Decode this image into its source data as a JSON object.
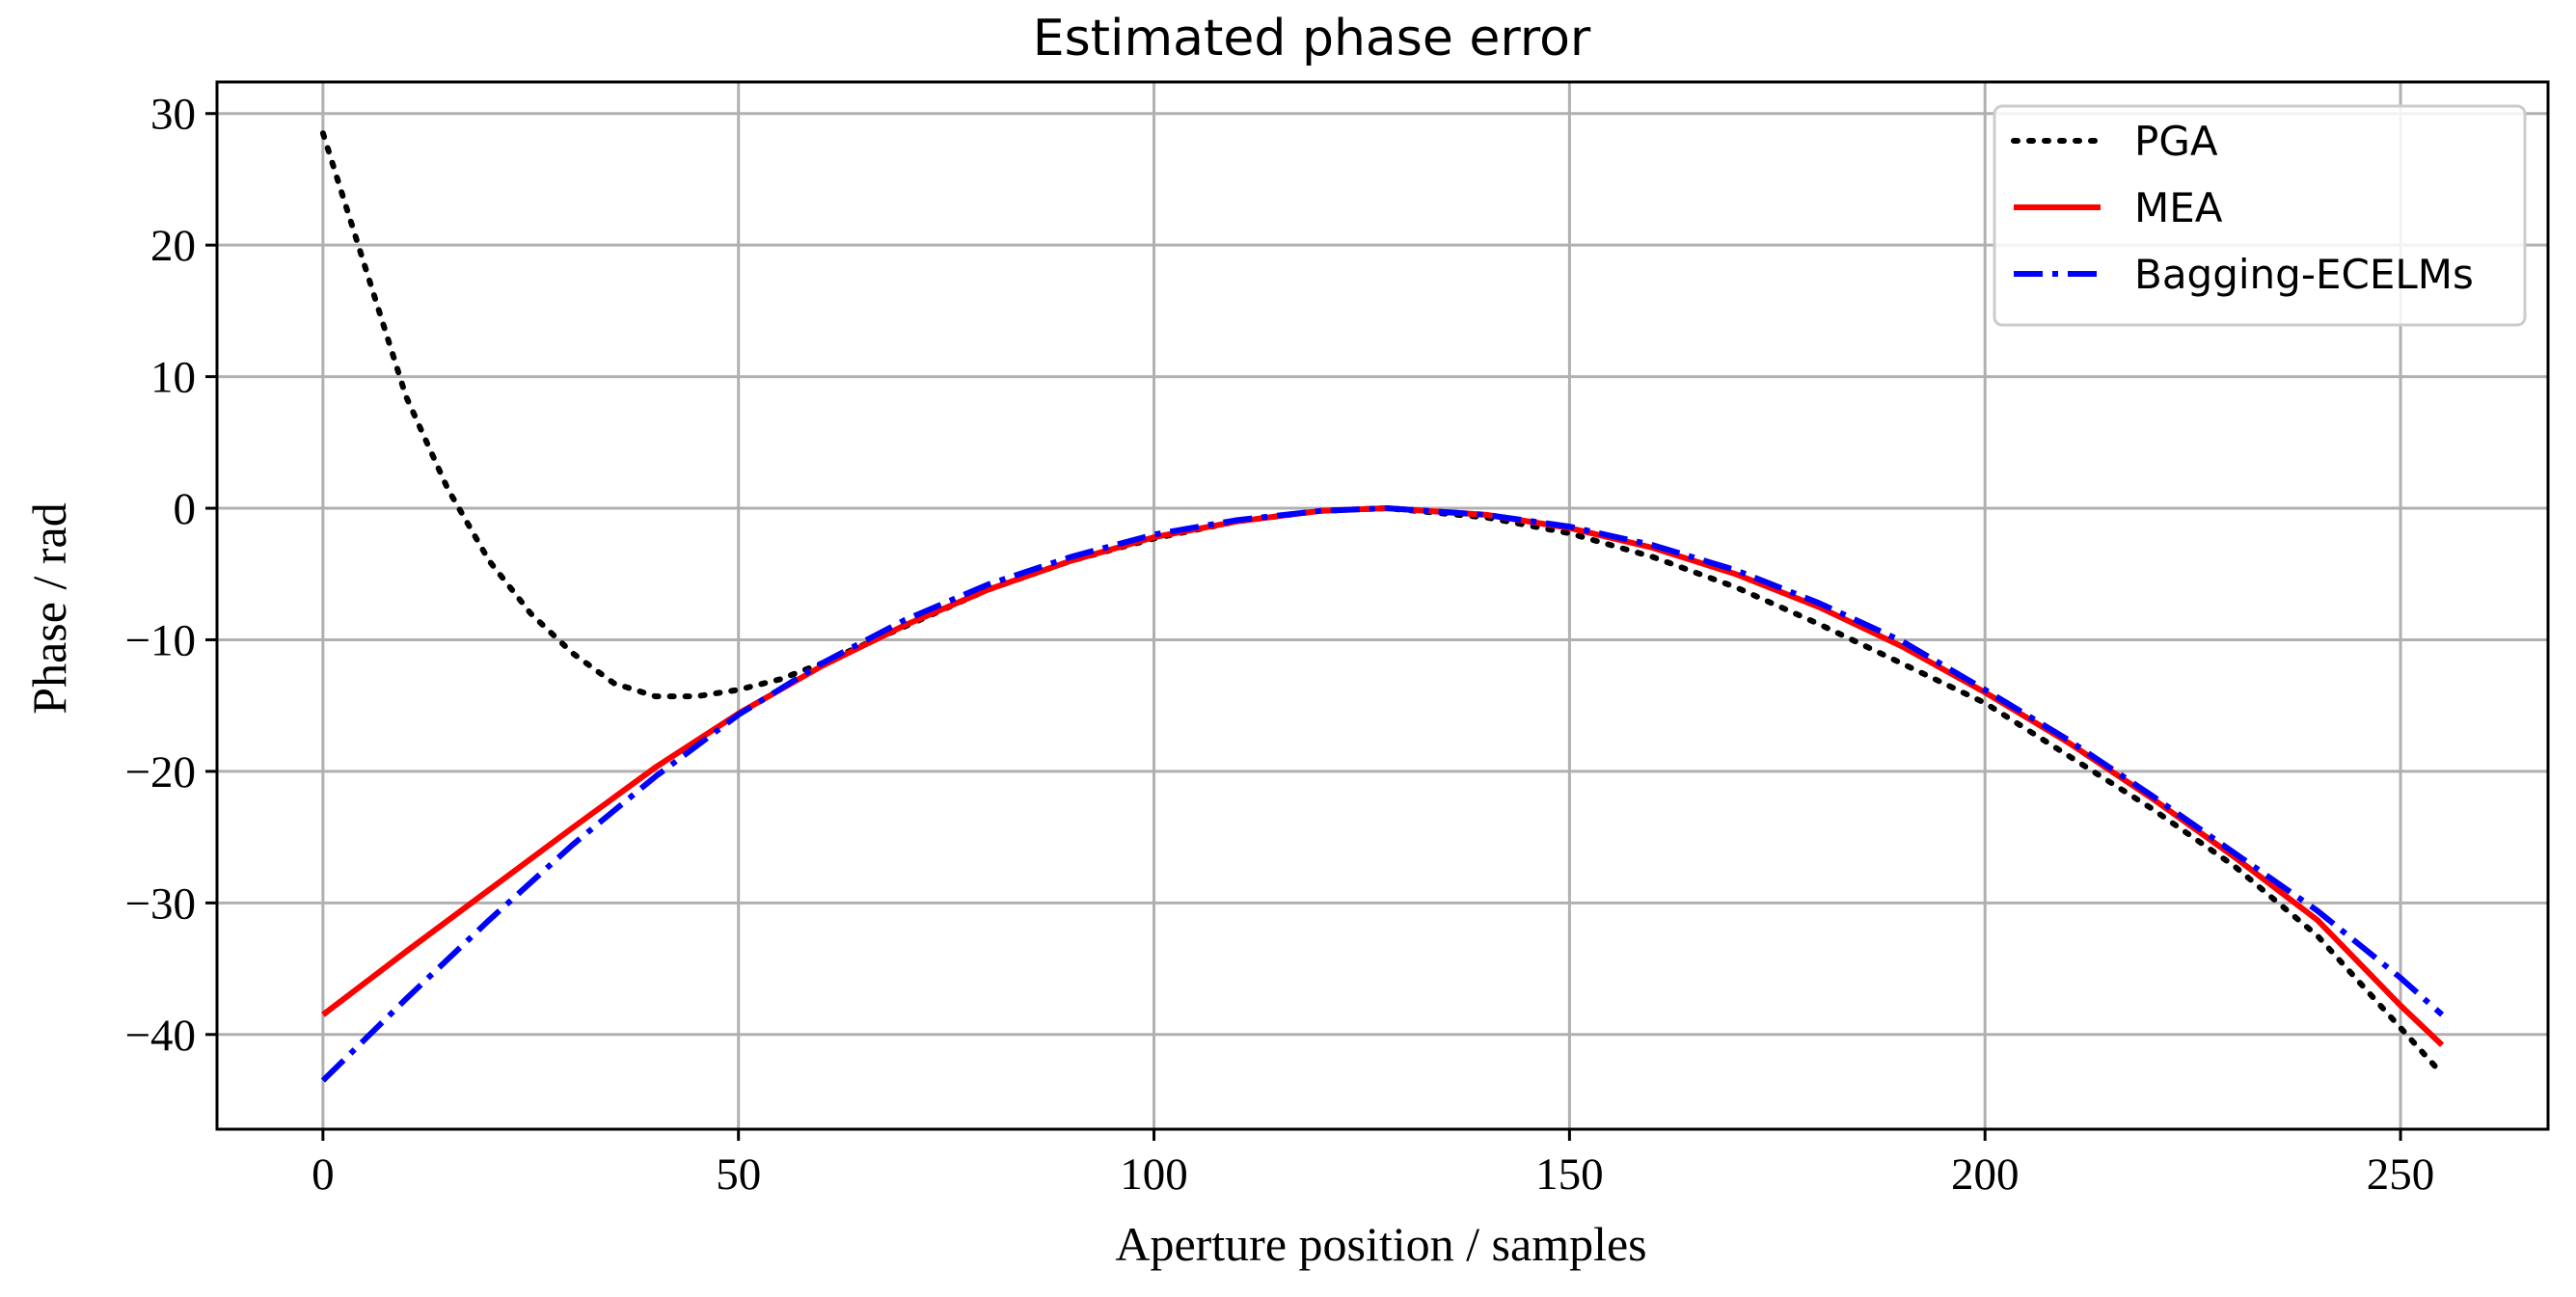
{
  "chart_data": {
    "type": "line",
    "title": "Estimated phase error",
    "xlabel": "Aperture position / samples",
    "ylabel": "Phase / rad",
    "xlim": [
      -12.75,
      267.75
    ],
    "ylim": [
      -47.2,
      32.4
    ],
    "xticks": [
      0,
      50,
      100,
      150,
      200,
      250
    ],
    "xtick_labels": [
      "0",
      "50",
      "100",
      "150",
      "200",
      "250"
    ],
    "yticks": [
      30,
      20,
      10,
      0,
      -10,
      -20,
      -30,
      -40
    ],
    "ytick_labels": [
      "30",
      "20",
      "10",
      "0",
      "−10",
      "−20",
      "−30",
      "−40"
    ],
    "grid": true,
    "legend_position": "top-right",
    "series": [
      {
        "name": "PGA",
        "color": "#000000",
        "style": "dotted",
        "x": [
          0,
          5,
          10,
          15,
          20,
          25,
          30,
          35,
          40,
          45,
          50,
          55,
          60,
          65,
          70,
          80,
          90,
          100,
          110,
          120,
          128,
          140,
          150,
          160,
          170,
          180,
          190,
          200,
          210,
          220,
          230,
          240,
          250,
          255
        ],
        "y": [
          28.5,
          18.5,
          8.5,
          1.5,
          -4.0,
          -8.0,
          -11.0,
          -13.3,
          -14.3,
          -14.3,
          -13.8,
          -13.0,
          -11.8,
          -10.4,
          -9.0,
          -6.2,
          -4.0,
          -2.3,
          -1.0,
          -0.2,
          0.0,
          -0.7,
          -1.9,
          -3.7,
          -6.0,
          -8.8,
          -11.8,
          -14.8,
          -18.8,
          -22.8,
          -27.2,
          -32.5,
          -39.5,
          -43.0
        ]
      },
      {
        "name": "MEA",
        "color": "#ff0000",
        "style": "solid",
        "x": [
          0,
          10,
          20,
          30,
          40,
          50,
          60,
          70,
          80,
          90,
          100,
          110,
          120,
          128,
          140,
          150,
          160,
          170,
          180,
          190,
          200,
          210,
          220,
          230,
          240,
          250,
          255
        ],
        "y": [
          -38.5,
          -33.7,
          -29.0,
          -24.3,
          -19.7,
          -15.6,
          -12.0,
          -8.9,
          -6.2,
          -4.0,
          -2.2,
          -1.0,
          -0.2,
          0.0,
          -0.5,
          -1.5,
          -3.0,
          -5.0,
          -7.5,
          -10.5,
          -14.0,
          -17.8,
          -22.0,
          -26.5,
          -31.3,
          -37.8,
          -40.8
        ]
      },
      {
        "name": "Bagging-ECELMs",
        "color": "#0000ff",
        "style": "dashdot",
        "x": [
          0,
          10,
          20,
          30,
          40,
          50,
          60,
          70,
          80,
          90,
          100,
          110,
          120,
          128,
          140,
          150,
          160,
          170,
          180,
          190,
          200,
          210,
          220,
          230,
          240,
          250,
          255
        ],
        "y": [
          -43.5,
          -37.3,
          -31.3,
          -25.6,
          -20.4,
          -15.7,
          -11.8,
          -8.5,
          -5.8,
          -3.7,
          -2.0,
          -0.9,
          -0.2,
          0.0,
          -0.5,
          -1.4,
          -2.8,
          -4.7,
          -7.2,
          -10.1,
          -13.8,
          -17.6,
          -21.8,
          -26.2,
          -30.6,
          -35.7,
          -38.5
        ]
      }
    ]
  }
}
